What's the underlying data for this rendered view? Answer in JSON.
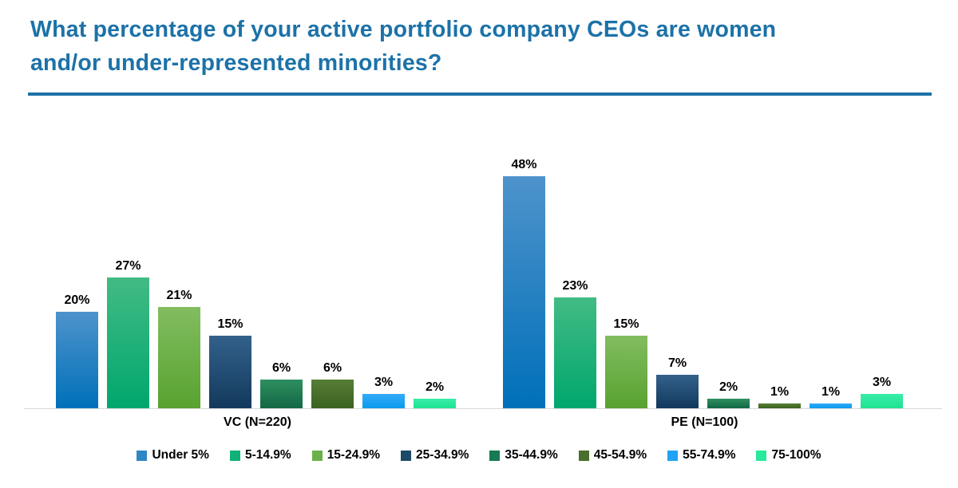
{
  "title": {
    "line1": "What percentage of your active portfolio company CEOs are women",
    "line2": "and/or under-represented minorities?",
    "color": "#1C72A8"
  },
  "chart_data": {
    "type": "bar",
    "title": "What percentage of your active portfolio company CEOs are women and/or under-represented minorities?",
    "categories": [
      "VC (N=220)",
      "PE (N=100)"
    ],
    "series": [
      {
        "name": "Under 5%",
        "values": [
          20,
          48
        ],
        "color_top": "#4E93CB",
        "color_bottom": "#0070B9",
        "legend_color": "#2E86C4"
      },
      {
        "name": "5-14.9%",
        "values": [
          27,
          23
        ],
        "color_top": "#42BB84",
        "color_bottom": "#00A76D",
        "legend_color": "#10B277"
      },
      {
        "name": "15-24.9%",
        "values": [
          21,
          15
        ],
        "color_top": "#82BD60",
        "color_bottom": "#58A230",
        "legend_color": "#6BB04B"
      },
      {
        "name": "25-34.9%",
        "values": [
          15,
          7
        ],
        "color_top": "#33618B",
        "color_bottom": "#12395C",
        "legend_color": "#1C4A68"
      },
      {
        "name": "35-44.9%",
        "values": [
          6,
          2
        ],
        "color_top": "#2F8F60",
        "color_bottom": "#126844",
        "legend_color": "#177A52"
      },
      {
        "name": "45-54.9%",
        "values": [
          6,
          1
        ],
        "color_top": "#567E36",
        "color_bottom": "#3A6220",
        "legend_color": "#4A6F2C"
      },
      {
        "name": "55-74.9%",
        "values": [
          3,
          1
        ],
        "color_top": "#33ABF8",
        "color_bottom": "#0B9AEE",
        "legend_color": "#1FA3F5"
      },
      {
        "name": "75-100%",
        "values": [
          2,
          3
        ],
        "color_top": "#39EDA8",
        "color_bottom": "#1FE392",
        "legend_color": "#28E89B"
      }
    ],
    "value_suffix": "%",
    "ylim": [
      0,
      50
    ],
    "grid": false,
    "legend_position": "bottom",
    "axis_line_color": "#d9d9d9",
    "value_label_color": "#000000"
  }
}
